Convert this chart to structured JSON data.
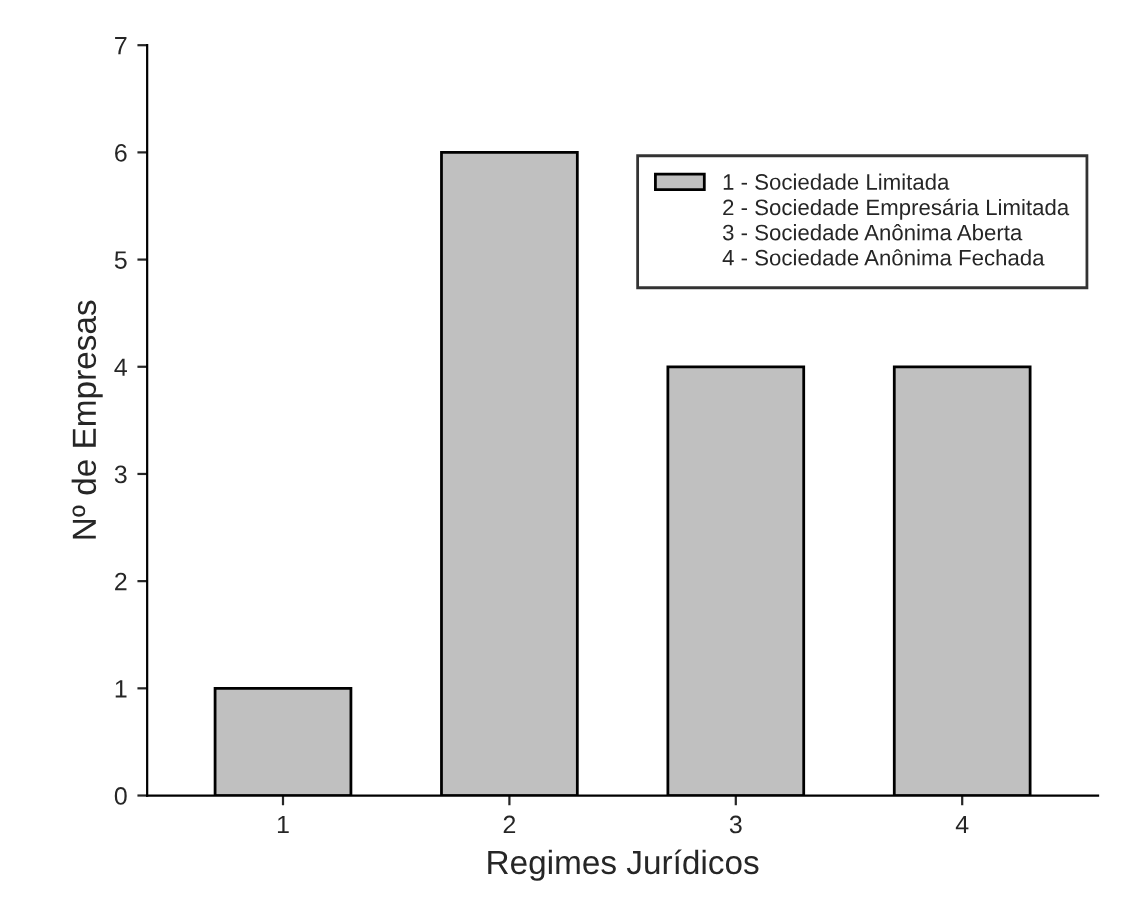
{
  "chart_data": {
    "type": "bar",
    "xlabel": "Regimes Jurídicos",
    "ylabel": "Nº de Empresas",
    "categories": [
      "1",
      "2",
      "3",
      "4"
    ],
    "series": [
      {
        "name": "1 - Sociedade Limitada",
        "color": "#c0c0c0",
        "values": [
          1,
          6,
          4,
          4
        ]
      }
    ],
    "annotations": [
      "2 - Sociedade Empresária Limitada",
      "3 - Sociedade Anônima Aberta",
      "4 - Sociedade Anônima Fechada"
    ],
    "ylim": [
      0,
      7
    ],
    "yticks": [
      0,
      1,
      2,
      3,
      4,
      5,
      6,
      7
    ],
    "grid": false,
    "legend": "top right"
  }
}
